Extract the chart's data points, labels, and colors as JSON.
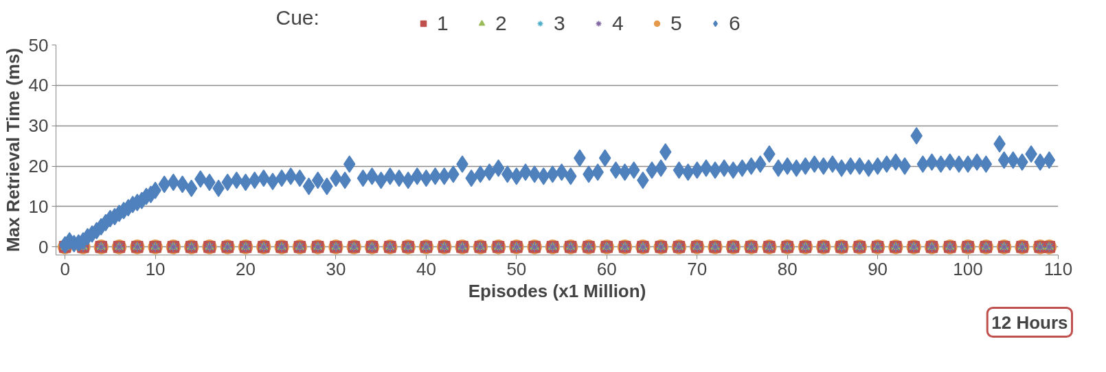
{
  "chart_data": {
    "type": "scatter",
    "xlabel": "Episodes (x1 Million)",
    "ylabel": "Max Retrieval Time (ms)",
    "legend_title": "Cue:",
    "annotations": [
      "12 Hours"
    ],
    "xlim": [
      -1,
      110
    ],
    "ylim": [
      -2,
      50
    ],
    "xticks": [
      0,
      10,
      20,
      30,
      40,
      50,
      60,
      70,
      80,
      90,
      100,
      110
    ],
    "yticks": [
      0,
      10,
      20,
      30,
      40,
      50
    ],
    "grid": "y",
    "legend": "top",
    "series": [
      {
        "name": "1",
        "color": "#c0504d",
        "marker": "square",
        "x": [
          0,
          2,
          4,
          6,
          8,
          10,
          12,
          14,
          16,
          18,
          20,
          22,
          24,
          26,
          28,
          30,
          32,
          34,
          36,
          38,
          40,
          42,
          44,
          46,
          48,
          50,
          52,
          54,
          56,
          58,
          60,
          62,
          64,
          66,
          68,
          70,
          72,
          74,
          76,
          78,
          80,
          82,
          84,
          86,
          88,
          90,
          92,
          94,
          96,
          98,
          100,
          102,
          104,
          106,
          108,
          109
        ],
        "values": [
          0,
          0,
          0,
          0,
          0,
          0,
          0,
          0,
          0,
          0,
          0,
          0,
          0,
          0,
          0,
          0,
          0,
          0,
          0,
          0,
          0,
          0,
          0,
          0,
          0,
          0,
          0,
          0,
          0,
          0,
          0,
          0,
          0,
          0,
          0,
          0,
          0,
          0,
          0,
          0,
          0,
          0,
          0,
          0,
          0,
          0,
          0,
          0,
          0,
          0,
          0,
          0,
          0,
          0,
          0,
          0
        ]
      },
      {
        "name": "2",
        "color": "#9bbb59",
        "marker": "triangle",
        "x": [
          0,
          2,
          4,
          6,
          8,
          10,
          12,
          14,
          16,
          18,
          20,
          22,
          24,
          26,
          28,
          30,
          32,
          34,
          36,
          38,
          40,
          42,
          44,
          46,
          48,
          50,
          52,
          54,
          56,
          58,
          60,
          62,
          64,
          66,
          68,
          70,
          72,
          74,
          76,
          78,
          80,
          82,
          84,
          86,
          88,
          90,
          92,
          94,
          96,
          98,
          100,
          102,
          104,
          106,
          108,
          109
        ],
        "values": [
          0,
          0,
          0,
          0,
          0,
          0,
          0,
          0,
          0,
          0,
          0,
          0,
          0,
          0,
          0,
          0,
          0,
          0,
          0,
          0,
          0,
          0,
          0,
          0,
          0,
          0,
          0,
          0,
          0,
          0,
          0,
          0,
          0,
          0,
          0,
          0,
          0,
          0,
          0,
          0,
          0,
          0,
          0,
          0,
          0,
          0,
          0,
          0,
          0,
          0,
          0,
          0,
          0,
          0,
          0,
          0
        ]
      },
      {
        "name": "3",
        "color": "#4bacc6",
        "marker": "cross",
        "x": [
          0,
          2,
          4,
          6,
          8,
          10,
          12,
          14,
          16,
          18,
          20,
          22,
          24,
          26,
          28,
          30,
          32,
          34,
          36,
          38,
          40,
          42,
          44,
          46,
          48,
          50,
          52,
          54,
          56,
          58,
          60,
          62,
          64,
          66,
          68,
          70,
          72,
          74,
          76,
          78,
          80,
          82,
          84,
          86,
          88,
          90,
          92,
          94,
          96,
          98,
          100,
          102,
          104,
          106,
          108,
          109
        ],
        "values": [
          0,
          0,
          0,
          0,
          0,
          0,
          0,
          0,
          0,
          0,
          0,
          0,
          0,
          0,
          0,
          0,
          0,
          0,
          0,
          0,
          0,
          0,
          0,
          0,
          0,
          0,
          0,
          0,
          0,
          0,
          0,
          0,
          0,
          0,
          0,
          0,
          0,
          0,
          0,
          0,
          0,
          0,
          0,
          0,
          0,
          0,
          0,
          0,
          0,
          0,
          0,
          0,
          0,
          0,
          0,
          0
        ]
      },
      {
        "name": "4",
        "color": "#8064a2",
        "marker": "cross",
        "x": [
          0,
          2,
          4,
          6,
          8,
          10,
          12,
          14,
          16,
          18,
          20,
          22,
          24,
          26,
          28,
          30,
          32,
          34,
          36,
          38,
          40,
          42,
          44,
          46,
          48,
          50,
          52,
          54,
          56,
          58,
          60,
          62,
          64,
          66,
          68,
          70,
          72,
          74,
          76,
          78,
          80,
          82,
          84,
          86,
          88,
          90,
          92,
          94,
          96,
          98,
          100,
          102,
          104,
          106,
          108,
          109
        ],
        "values": [
          0,
          0,
          0,
          0,
          0,
          0,
          0,
          0,
          0,
          0,
          0,
          0,
          0,
          0,
          0,
          0,
          0,
          0,
          0,
          0,
          0,
          0,
          0,
          0,
          0,
          0,
          0,
          0,
          0,
          0,
          0,
          0,
          0,
          0,
          0,
          0,
          0,
          0,
          0,
          0,
          0,
          0,
          0,
          0,
          0,
          0,
          0,
          0,
          0,
          0,
          0,
          0,
          0,
          0,
          0,
          0
        ]
      },
      {
        "name": "5",
        "color": "#e59a4c",
        "marker": "circle",
        "x": [
          0,
          2,
          4,
          6,
          8,
          10,
          12,
          14,
          16,
          18,
          20,
          22,
          24,
          26,
          28,
          30,
          32,
          34,
          36,
          38,
          40,
          42,
          44,
          46,
          48,
          50,
          52,
          54,
          56,
          58,
          60,
          62,
          64,
          66,
          68,
          70,
          72,
          74,
          76,
          78,
          80,
          82,
          84,
          86,
          88,
          90,
          92,
          94,
          96,
          98,
          100,
          102,
          104,
          106,
          108,
          109
        ],
        "values": [
          0,
          0,
          0,
          0,
          0,
          0,
          0,
          0,
          0,
          0,
          0,
          0,
          0,
          0,
          0,
          0,
          0,
          0,
          0,
          0,
          0,
          0,
          0,
          0,
          0,
          0,
          0,
          0,
          0,
          0,
          0,
          0,
          0,
          0,
          0,
          0,
          0,
          0,
          0,
          0,
          0,
          0,
          0,
          0,
          0,
          0,
          0,
          0,
          0,
          0,
          0,
          0,
          0,
          0,
          0,
          0
        ]
      },
      {
        "name": "6",
        "color": "#4f81bd",
        "marker": "diamond",
        "x": [
          0,
          0.5,
          1,
          1.5,
          2,
          2.5,
          3,
          3.5,
          4,
          4.5,
          5,
          5.5,
          6,
          6.5,
          7,
          7.5,
          8,
          8.5,
          9,
          9.5,
          10,
          11,
          12,
          13,
          14,
          15,
          16,
          17,
          18,
          19,
          20,
          21,
          22,
          23,
          24,
          25,
          26,
          27,
          28,
          29,
          30,
          31,
          31.5,
          33,
          34,
          35,
          36,
          37,
          38,
          39,
          40,
          41,
          42,
          43,
          44,
          45,
          46,
          47,
          48,
          49,
          50,
          51,
          52,
          53,
          54,
          55,
          56,
          57,
          58,
          59,
          59.8,
          61,
          62,
          63,
          64,
          65,
          66,
          66.5,
          68,
          69,
          70,
          71,
          72,
          73,
          74,
          75,
          76,
          77,
          78,
          79,
          80,
          81,
          82,
          83,
          84,
          85,
          86,
          87,
          88,
          89,
          90,
          91,
          92,
          93,
          94.3,
          95,
          96,
          97,
          98,
          99,
          100,
          101,
          102,
          103.5,
          104,
          105,
          106,
          107,
          108,
          109
        ],
        "values": [
          0.5,
          1.5,
          0.8,
          1,
          1.5,
          2.5,
          3.2,
          4,
          5,
          6,
          7,
          7.5,
          8.3,
          9,
          9.7,
          10.5,
          11,
          11.5,
          12.5,
          13,
          14,
          15.5,
          16,
          15.5,
          14.5,
          16.8,
          16,
          14.5,
          16,
          16.5,
          16,
          16.5,
          17,
          16.2,
          17,
          17.5,
          17,
          15,
          16.5,
          15,
          17,
          16.5,
          20.5,
          17,
          17.5,
          16.5,
          17.5,
          17,
          16.5,
          17.5,
          17,
          17.5,
          17.5,
          18,
          20.5,
          17,
          18,
          18.5,
          19.5,
          18,
          17.5,
          18.5,
          18,
          17.5,
          18,
          18.5,
          17.5,
          22,
          18,
          18.5,
          22,
          19,
          18.5,
          19,
          16.5,
          19,
          19.5,
          23.5,
          19,
          18.5,
          19,
          19.5,
          19,
          19.5,
          19,
          19.5,
          20,
          20.5,
          23,
          19.5,
          20,
          19.5,
          20,
          20.5,
          20,
          20.5,
          19.5,
          20,
          20,
          19.5,
          20,
          20.5,
          21,
          20,
          27.5,
          20.5,
          21,
          20.5,
          21,
          20.5,
          20.5,
          21,
          20.5,
          25.5,
          21.5,
          21.5,
          21,
          23,
          21,
          21.5
        ]
      }
    ]
  }
}
